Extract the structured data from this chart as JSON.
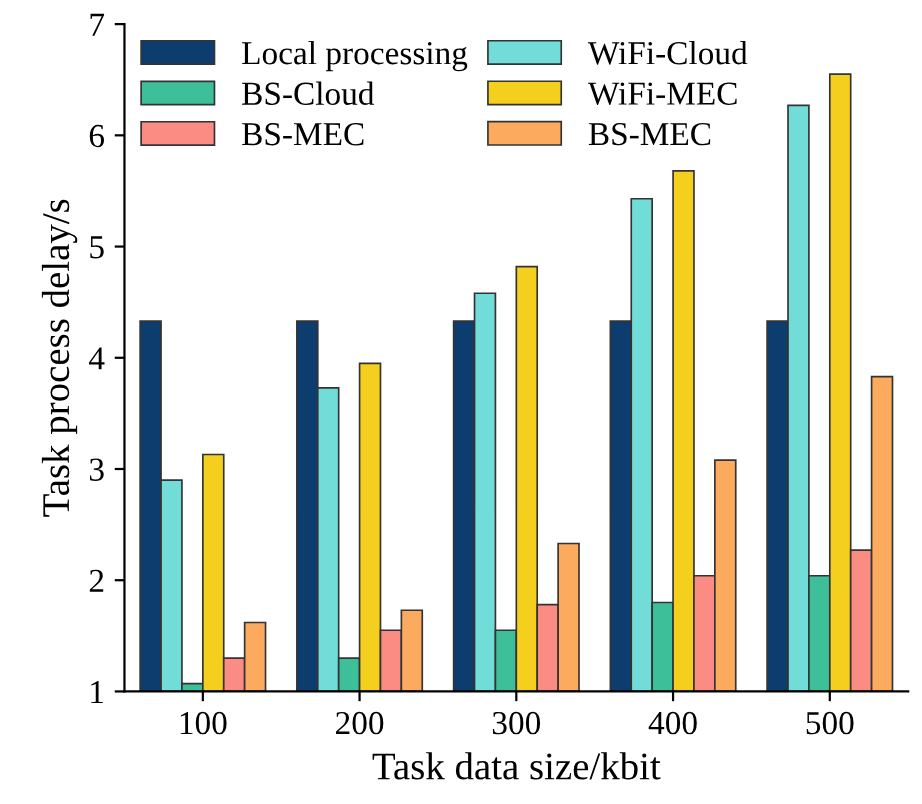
{
  "chart_data": {
    "type": "bar",
    "xlabel": "Task data size/kbit",
    "ylabel": "Task process delay/s",
    "categories": [
      "100",
      "200",
      "300",
      "400",
      "500"
    ],
    "series": [
      {
        "name": "Local processing",
        "color": "#0d3c6e",
        "values": [
          4.33,
          4.33,
          4.33,
          4.33,
          4.33
        ]
      },
      {
        "name": "WiFi-Cloud",
        "color": "#72dcd8",
        "values": [
          2.9,
          3.73,
          4.58,
          5.43,
          6.27
        ]
      },
      {
        "name": "BS-Cloud",
        "color": "#3dbf9a",
        "values": [
          1.07,
          1.3,
          1.55,
          1.8,
          2.04
        ]
      },
      {
        "name": "WiFi-MEC",
        "color": "#f5cf1e",
        "values": [
          3.13,
          3.95,
          4.82,
          5.68,
          6.55
        ]
      },
      {
        "name": "BS-MEC",
        "color": "#fa8c84",
        "values": [
          1.3,
          1.55,
          1.78,
          2.04,
          2.27
        ]
      },
      {
        "name": "BS-MEC",
        "color": "#fbaa5e",
        "values": [
          1.62,
          1.73,
          2.33,
          3.08,
          3.83
        ]
      }
    ],
    "ylim": [
      1,
      7
    ],
    "yticks": [
      1,
      2,
      3,
      4,
      5,
      6,
      7
    ],
    "grid": false,
    "legend": "top left"
  }
}
